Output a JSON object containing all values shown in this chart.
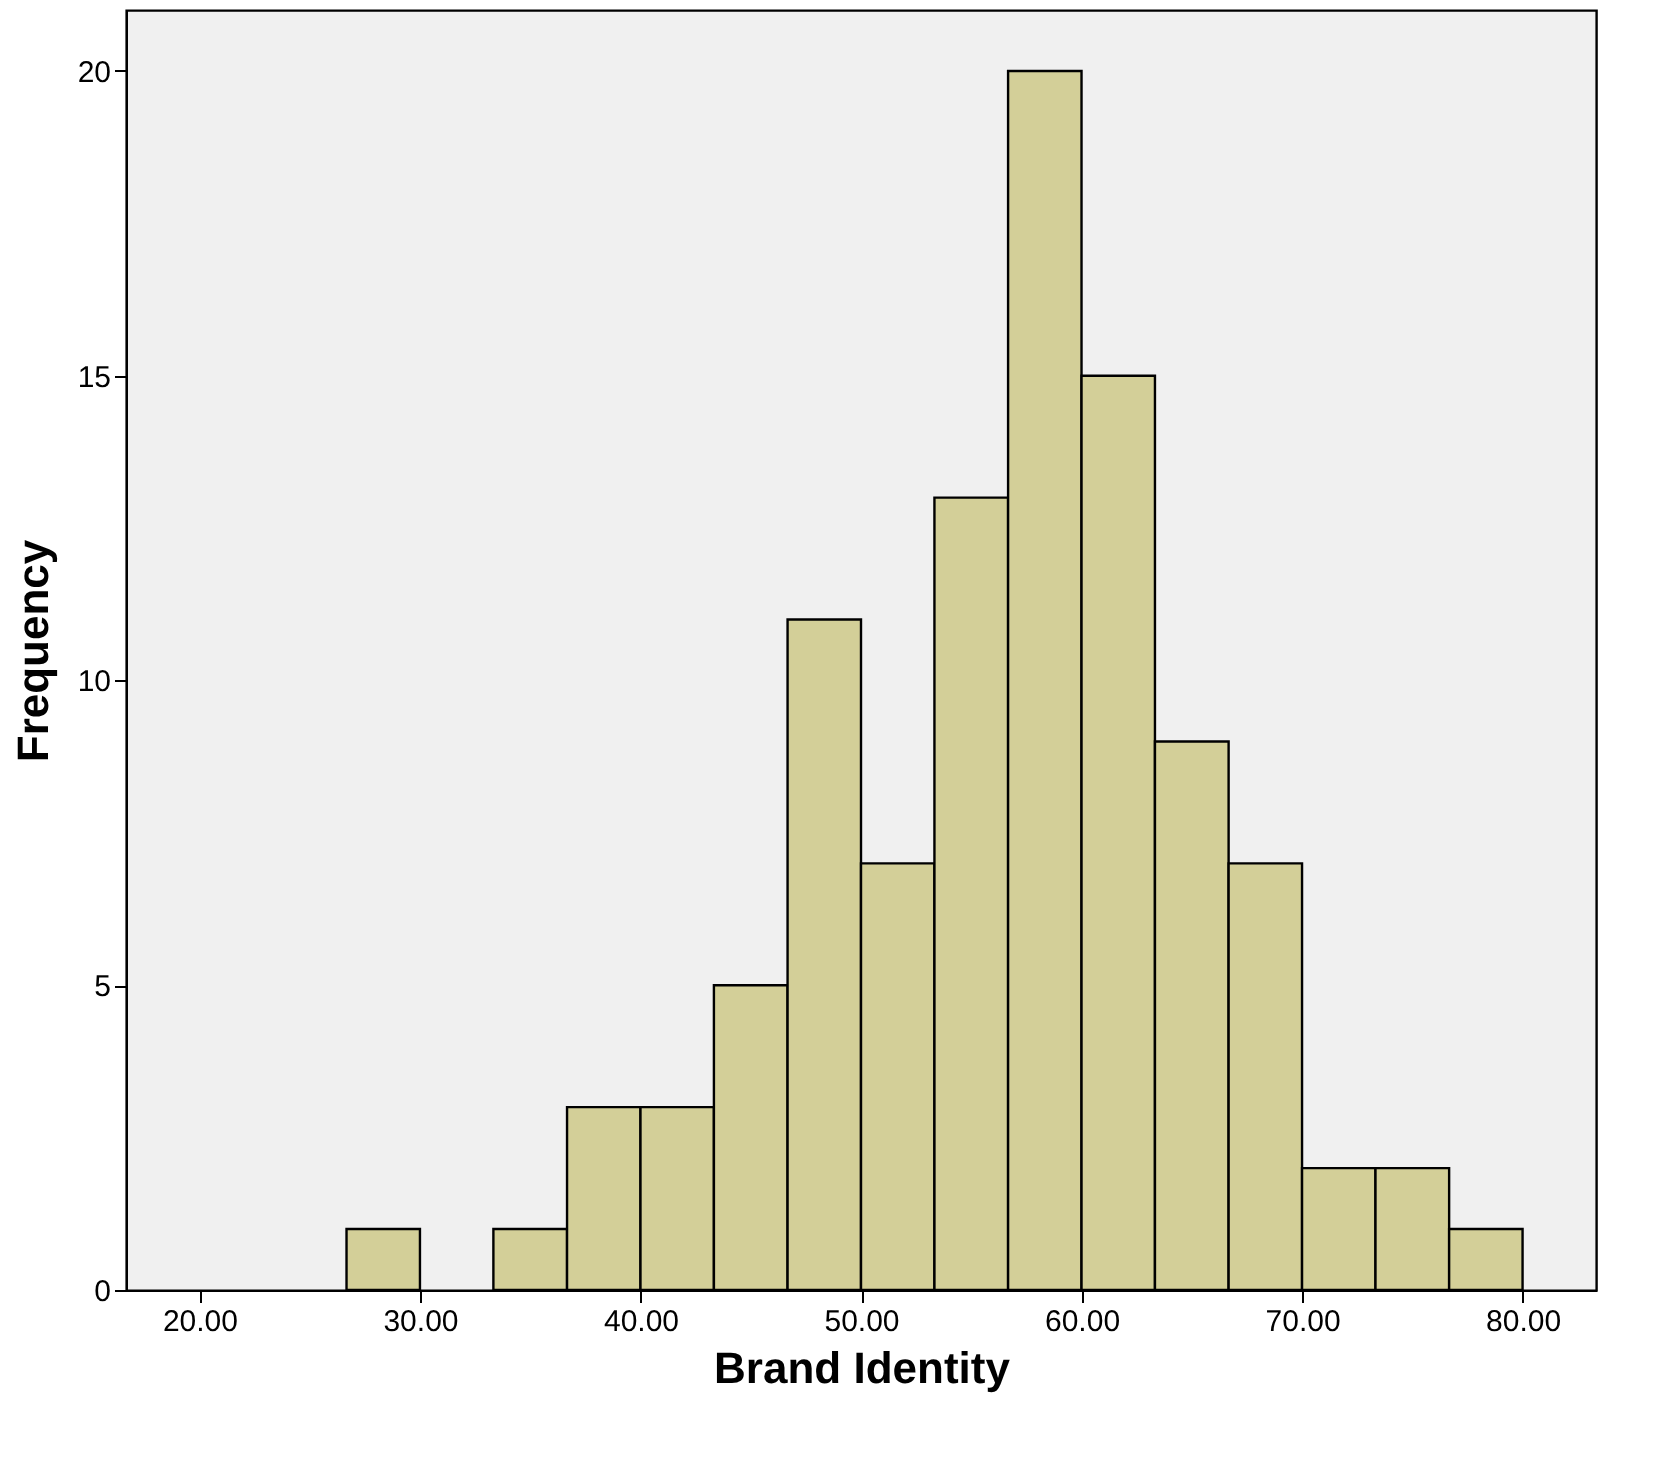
{
  "chart_data": {
    "type": "histogram",
    "xlabel": "Brand Identity",
    "ylabel": "Frequency",
    "bins": [
      26.67,
      30,
      33.33,
      36.67,
      40,
      43.33,
      46.67,
      50,
      53.33,
      56.67,
      60,
      63.33,
      66.67,
      70,
      73.33,
      76.67,
      80
    ],
    "values": [
      1,
      0,
      1,
      3,
      3,
      5,
      11,
      7,
      13,
      20,
      15,
      9,
      7,
      2,
      2,
      1
    ],
    "color": "#d3cf98",
    "xlim": [
      16.67,
      83.33
    ],
    "xticks": [
      {
        "value": 20,
        "label": "20.00"
      },
      {
        "value": 30,
        "label": "30.00"
      },
      {
        "value": 40,
        "label": "40.00"
      },
      {
        "value": 50,
        "label": "50.00"
      },
      {
        "value": 60,
        "label": "60.00"
      },
      {
        "value": 70,
        "label": "70.00"
      },
      {
        "value": 80,
        "label": "80.00"
      }
    ],
    "ylim": [
      0,
      21
    ],
    "yticks": [
      0,
      5,
      10,
      15,
      20
    ],
    "grid": false
  }
}
